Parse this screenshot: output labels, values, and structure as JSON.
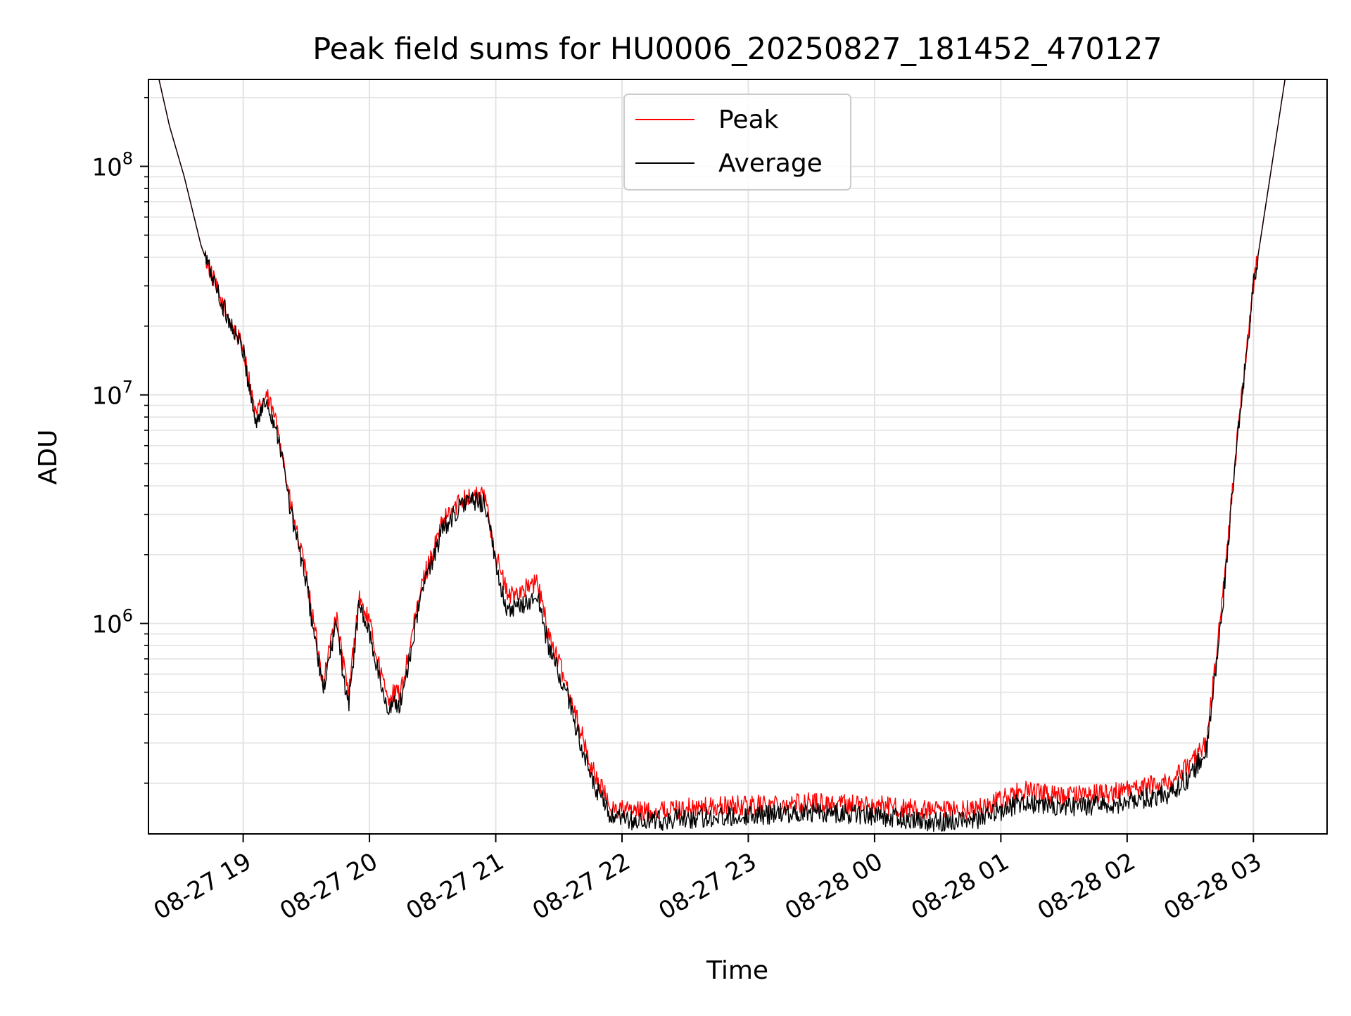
{
  "chart_data": {
    "type": "line",
    "title": "Peak field sums for HU0006_20250827_181452_470127",
    "xlabel": "Time",
    "ylabel": "ADU",
    "yscale": "log",
    "ylim": [
      120000,
      240000000
    ],
    "xlim": [
      "2025-08-27 18:15",
      "2025-08-28 03:35"
    ],
    "grid": true,
    "legend_position": "top-center",
    "x_ticks": [
      "08-27 19",
      "08-27 20",
      "08-27 21",
      "08-27 22",
      "08-27 23",
      "08-28 00",
      "08-28 01",
      "08-28 02",
      "08-28 03"
    ],
    "x_tick_times": [
      "2025-08-27 19:00",
      "2025-08-27 20:00",
      "2025-08-27 21:00",
      "2025-08-27 22:00",
      "2025-08-27 23:00",
      "2025-08-28 00:00",
      "2025-08-28 01:00",
      "2025-08-28 02:00",
      "2025-08-28 03:00"
    ],
    "y_ticks": [
      {
        "value": 1000000,
        "base": "10",
        "exp": "6"
      },
      {
        "value": 10000000,
        "base": "10",
        "exp": "7"
      },
      {
        "value": 100000000,
        "base": "10",
        "exp": "8"
      }
    ],
    "series": [
      {
        "name": "Peak",
        "color": "#ff0000",
        "x": [
          "2025-08-27 18:20",
          "2025-08-27 18:25",
          "2025-08-27 18:32",
          "2025-08-27 18:40",
          "2025-08-27 18:50",
          "2025-08-27 19:00",
          "2025-08-27 19:06",
          "2025-08-27 19:11",
          "2025-08-27 19:17",
          "2025-08-27 19:22",
          "2025-08-27 19:30",
          "2025-08-27 19:38",
          "2025-08-27 19:44",
          "2025-08-27 19:50",
          "2025-08-27 19:55",
          "2025-08-27 20:00",
          "2025-08-27 20:08",
          "2025-08-27 20:15",
          "2025-08-27 20:25",
          "2025-08-27 20:35",
          "2025-08-27 20:45",
          "2025-08-27 20:55",
          "2025-08-27 21:00",
          "2025-08-27 21:06",
          "2025-08-27 21:12",
          "2025-08-27 21:20",
          "2025-08-27 21:25",
          "2025-08-27 21:35",
          "2025-08-27 21:45",
          "2025-08-27 21:55",
          "2025-08-27 22:10",
          "2025-08-27 22:30",
          "2025-08-27 23:00",
          "2025-08-27 23:30",
          "2025-08-28 00:00",
          "2025-08-28 00:30",
          "2025-08-28 00:50",
          "2025-08-28 01:10",
          "2025-08-28 01:30",
          "2025-08-28 02:00",
          "2025-08-28 02:20",
          "2025-08-28 02:30",
          "2025-08-28 02:38",
          "2025-08-28 02:45",
          "2025-08-28 02:52",
          "2025-08-28 03:00",
          "2025-08-28 03:10",
          "2025-08-28 03:15"
        ],
        "values": [
          240000000,
          150000000,
          90000000,
          45000000,
          25000000,
          16000000,
          8000000,
          10000000,
          7000000,
          3500000,
          1600000,
          550000,
          1100000,
          480000,
          1300000,
          1000000,
          480000,
          500000,
          1500000,
          2800000,
          3600000,
          3600000,
          2000000,
          1300000,
          1400000,
          1500000,
          900000,
          500000,
          240000,
          155000,
          150000,
          155000,
          160000,
          165000,
          160000,
          150000,
          155000,
          185000,
          175000,
          185000,
          205000,
          240000,
          310000,
          1200000,
          6000000,
          30000000,
          120000000,
          240000000
        ]
      },
      {
        "name": "Average",
        "color": "#000000",
        "x": [
          "2025-08-27 18:20",
          "2025-08-27 18:25",
          "2025-08-27 18:32",
          "2025-08-27 18:40",
          "2025-08-27 18:50",
          "2025-08-27 19:00",
          "2025-08-27 19:06",
          "2025-08-27 19:11",
          "2025-08-27 19:17",
          "2025-08-27 19:22",
          "2025-08-27 19:30",
          "2025-08-27 19:38",
          "2025-08-27 19:44",
          "2025-08-27 19:50",
          "2025-08-27 19:55",
          "2025-08-27 20:00",
          "2025-08-27 20:08",
          "2025-08-27 20:15",
          "2025-08-27 20:25",
          "2025-08-27 20:35",
          "2025-08-27 20:45",
          "2025-08-27 20:55",
          "2025-08-27 21:00",
          "2025-08-27 21:06",
          "2025-08-27 21:12",
          "2025-08-27 21:20",
          "2025-08-27 21:25",
          "2025-08-27 21:35",
          "2025-08-27 21:45",
          "2025-08-27 21:55",
          "2025-08-27 22:10",
          "2025-08-27 22:30",
          "2025-08-27 23:00",
          "2025-08-27 23:30",
          "2025-08-28 00:00",
          "2025-08-28 00:30",
          "2025-08-28 00:50",
          "2025-08-28 01:10",
          "2025-08-28 01:30",
          "2025-08-28 02:00",
          "2025-08-28 02:20",
          "2025-08-28 02:30",
          "2025-08-28 02:38",
          "2025-08-28 02:45",
          "2025-08-28 02:52",
          "2025-08-28 03:00",
          "2025-08-28 03:10",
          "2025-08-28 03:15"
        ],
        "values": [
          240000000,
          150000000,
          90000000,
          45000000,
          25000000,
          15500000,
          7500000,
          9500000,
          6500000,
          3300000,
          1500000,
          500000,
          1000000,
          430000,
          1200000,
          900000,
          430000,
          450000,
          1400000,
          2600000,
          3400000,
          3400000,
          1800000,
          1100000,
          1200000,
          1300000,
          800000,
          450000,
          210000,
          140000,
          135000,
          140000,
          145000,
          150000,
          145000,
          135000,
          140000,
          165000,
          155000,
          165000,
          180000,
          215000,
          280000,
          1100000,
          5800000,
          30000000,
          120000000,
          240000000
        ]
      }
    ]
  }
}
